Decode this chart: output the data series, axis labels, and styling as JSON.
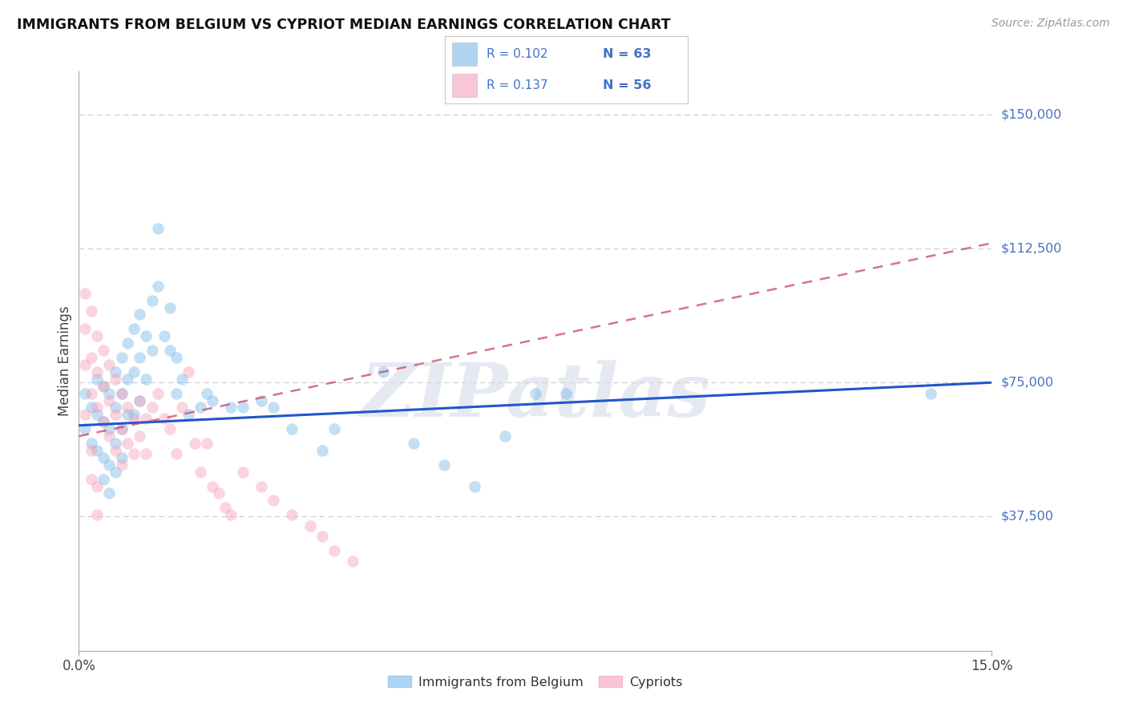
{
  "title": "IMMIGRANTS FROM BELGIUM VS CYPRIOT MEDIAN EARNINGS CORRELATION CHART",
  "source": "Source: ZipAtlas.com",
  "ylabel": "Median Earnings",
  "xlim": [
    0.0,
    0.15
  ],
  "ylim": [
    0,
    162000
  ],
  "y_ticks": [
    0,
    37500,
    75000,
    112500,
    150000
  ],
  "y_tick_labels": [
    "",
    "$37,500",
    "$75,000",
    "$112,500",
    "$150,000"
  ],
  "watermark": "ZIPatlas",
  "bg_color": "#ffffff",
  "grid_color": "#cccccc",
  "scatter_blue": "#7ab8e8",
  "scatter_pink": "#f4a0b8",
  "line_blue": "#2255cc",
  "line_pink": "#cc4466",
  "label_color": "#4472c4",
  "belgium_scatter_x": [
    0.001,
    0.001,
    0.002,
    0.002,
    0.003,
    0.003,
    0.003,
    0.004,
    0.004,
    0.004,
    0.004,
    0.005,
    0.005,
    0.005,
    0.005,
    0.006,
    0.006,
    0.006,
    0.006,
    0.007,
    0.007,
    0.007,
    0.007,
    0.008,
    0.008,
    0.008,
    0.009,
    0.009,
    0.009,
    0.01,
    0.01,
    0.01,
    0.011,
    0.011,
    0.012,
    0.012,
    0.013,
    0.013,
    0.014,
    0.015,
    0.015,
    0.016,
    0.016,
    0.017,
    0.018,
    0.02,
    0.021,
    0.022,
    0.025,
    0.027,
    0.03,
    0.032,
    0.035,
    0.04,
    0.042,
    0.05,
    0.055,
    0.06,
    0.065,
    0.07,
    0.075,
    0.08,
    0.14
  ],
  "belgium_scatter_y": [
    72000,
    62000,
    68000,
    58000,
    76000,
    66000,
    56000,
    74000,
    64000,
    54000,
    48000,
    72000,
    62000,
    52000,
    44000,
    78000,
    68000,
    58000,
    50000,
    82000,
    72000,
    62000,
    54000,
    86000,
    76000,
    66000,
    90000,
    78000,
    66000,
    94000,
    82000,
    70000,
    88000,
    76000,
    98000,
    84000,
    118000,
    102000,
    88000,
    96000,
    84000,
    82000,
    72000,
    76000,
    66000,
    68000,
    72000,
    70000,
    68000,
    68000,
    70000,
    68000,
    62000,
    56000,
    62000,
    78000,
    58000,
    52000,
    46000,
    60000,
    72000,
    72000,
    72000
  ],
  "cypriot_scatter_x": [
    0.001,
    0.001,
    0.001,
    0.002,
    0.002,
    0.002,
    0.003,
    0.003,
    0.003,
    0.004,
    0.004,
    0.004,
    0.005,
    0.005,
    0.005,
    0.006,
    0.006,
    0.006,
    0.007,
    0.007,
    0.007,
    0.008,
    0.008,
    0.009,
    0.009,
    0.01,
    0.01,
    0.011,
    0.011,
    0.012,
    0.013,
    0.014,
    0.015,
    0.016,
    0.017,
    0.018,
    0.019,
    0.02,
    0.021,
    0.022,
    0.023,
    0.024,
    0.025,
    0.027,
    0.03,
    0.032,
    0.035,
    0.038,
    0.04,
    0.042,
    0.045,
    0.001,
    0.002,
    0.003,
    0.002,
    0.003
  ],
  "cypriot_scatter_y": [
    100000,
    90000,
    80000,
    95000,
    82000,
    72000,
    88000,
    78000,
    68000,
    84000,
    74000,
    64000,
    80000,
    70000,
    60000,
    76000,
    66000,
    56000,
    72000,
    62000,
    52000,
    68000,
    58000,
    65000,
    55000,
    70000,
    60000,
    65000,
    55000,
    68000,
    72000,
    65000,
    62000,
    55000,
    68000,
    78000,
    58000,
    50000,
    58000,
    46000,
    44000,
    40000,
    38000,
    50000,
    46000,
    42000,
    38000,
    35000,
    32000,
    28000,
    25000,
    66000,
    56000,
    46000,
    48000,
    38000
  ],
  "belgium_line_x": [
    0.0,
    0.15
  ],
  "belgium_line_y": [
    63000,
    75000
  ],
  "cypriot_line_x": [
    0.0,
    0.15
  ],
  "cypriot_line_y": [
    60000,
    114000
  ]
}
